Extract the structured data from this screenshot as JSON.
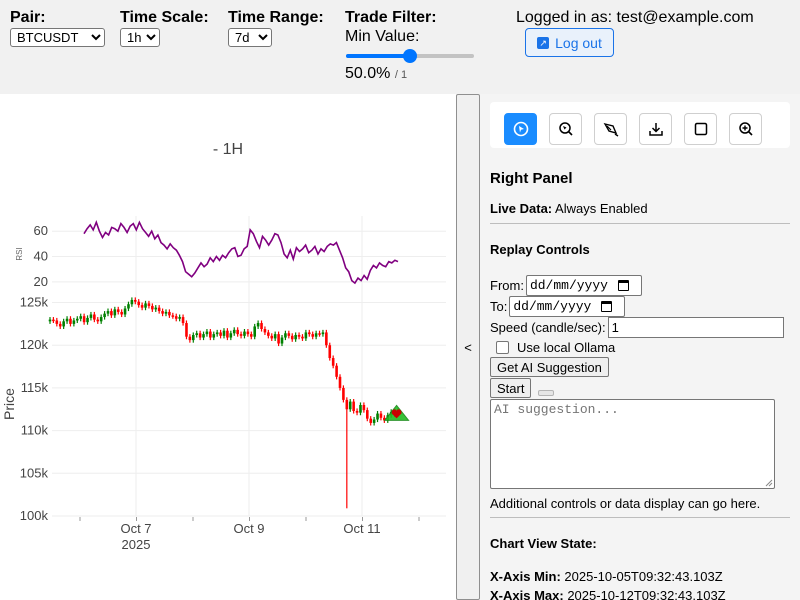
{
  "topbar": {
    "pair": {
      "label": "Pair:",
      "value": "BTCUSDT"
    },
    "time_scale": {
      "label": "Time Scale:",
      "value": "1h"
    },
    "time_range": {
      "label": "Time Range:",
      "value": "7d"
    },
    "trade_filter": {
      "title": "Trade Filter:",
      "sub_label": "Min Value:",
      "value_text": "50.0%",
      "max_text": "/ 1",
      "slider_fraction": 0.5
    },
    "login_text": "Logged in as: test@example.com",
    "logout_label": "Log out",
    "accent_color": "#1a73e8"
  },
  "chart_data": {
    "type": "candlestick",
    "title": "- 1H",
    "ylabel": "Price",
    "rsi_label": "RSI",
    "rsi_ticks": [
      "60",
      "40",
      "20"
    ],
    "price_ticks": [
      "125k",
      "120k",
      "115k",
      "110k",
      "105k",
      "100k"
    ],
    "x_ticks": [
      "Oct 7",
      "Oct 9",
      "Oct 11"
    ],
    "x_year": "2025",
    "rsi_ylim": [
      12,
      72
    ],
    "price_ylim": [
      100000,
      126000
    ],
    "x_range": [
      "2025-10-05T09:32:43",
      "2025-10-12T09:32:43"
    ],
    "up_color": "#008000",
    "down_color": "#ff0000",
    "rsi_color": "#800080",
    "price_close": [
      123000,
      122900,
      122500,
      122200,
      122800,
      123100,
      122500,
      122900,
      123100,
      123400,
      122700,
      123200,
      123600,
      123000,
      122800,
      123300,
      123700,
      124000,
      123500,
      124200,
      123900,
      123600,
      124300,
      124800,
      125300,
      125100,
      124700,
      124400,
      124900,
      124600,
      124200,
      124400,
      124000,
      123700,
      123900,
      123500,
      123400,
      123100,
      123300,
      122600,
      121000,
      120600,
      121200,
      121400,
      120900,
      121300,
      121600,
      120900,
      121300,
      121500,
      121100,
      121700,
      120900,
      121400,
      121800,
      121300,
      121100,
      121600,
      121300,
      121000,
      122200,
      122600,
      121900,
      121500,
      121100,
      120800,
      121300,
      120200,
      120900,
      121400,
      121100,
      120700,
      121200,
      121000,
      120800,
      121500,
      121300,
      121000,
      121400,
      121300,
      121500,
      120000,
      118500,
      117600,
      116300,
      115000,
      113600,
      112500,
      113400,
      112300,
      112100,
      113000,
      112400,
      111400,
      110900,
      111300,
      112000,
      111500,
      111200,
      111800,
      112200,
      111900,
      112300
    ],
    "price_extremes": {
      "wick_low": 100900,
      "spike_index": 87
    },
    "rsi_values": [
      58,
      62,
      65,
      61,
      67,
      60,
      55,
      59,
      57,
      63,
      62,
      60,
      66,
      63,
      59,
      64,
      66,
      61,
      67,
      62,
      59,
      56,
      60,
      54,
      57,
      51,
      49,
      46,
      50,
      47,
      45,
      41,
      36,
      28,
      26,
      24,
      27,
      31,
      35,
      32,
      34,
      39,
      36,
      40,
      37,
      41,
      39,
      43,
      46,
      47,
      40,
      41,
      46,
      48,
      61,
      58,
      52,
      47,
      56,
      53,
      49,
      53,
      58,
      57,
      51,
      42,
      39,
      45,
      38,
      47,
      44,
      46,
      49,
      43,
      45,
      48,
      42,
      46,
      44,
      48,
      50,
      49,
      51,
      45,
      39,
      31,
      28,
      21,
      19,
      23,
      21,
      25,
      22,
      29,
      33,
      31,
      35,
      33,
      32,
      36,
      35,
      37,
      36
    ],
    "markers": [
      {
        "type": "triangle",
        "color": "#22bb22",
        "at_index": 101
      },
      {
        "type": "heart",
        "color": "#cc0000",
        "at_index": 101
      }
    ]
  },
  "toggle_label": "<",
  "right_panel": {
    "toolbar_icons": [
      "pointer-icon",
      "zoom-select-icon",
      "draw-icon",
      "download-icon",
      "square-icon",
      "zoom-in-icon"
    ],
    "title": "Right Panel",
    "live_data_label": "Live Data:",
    "live_data_value": "Always Enabled",
    "replay_title": "Replay Controls",
    "from_label": "From:",
    "to_label": "To:",
    "date_placeholder": "dd/mm/yyyy",
    "speed_label": "Speed (candle/sec):",
    "speed_value": "1",
    "ollama_label": "Use local Ollama",
    "ai_button": "Get AI Suggestion",
    "start_button": "Start",
    "ai_placeholder": "AI suggestion...",
    "additional_text": "Additional controls or data display can go here.",
    "chart_state_title": "Chart View State:",
    "xmin_label": "X-Axis Min:",
    "xmin_value": "2025-10-05T09:32:43.103Z",
    "xmax_label": "X-Axis Max:",
    "xmax_value": "2025-10-12T09:32:43.103Z"
  }
}
